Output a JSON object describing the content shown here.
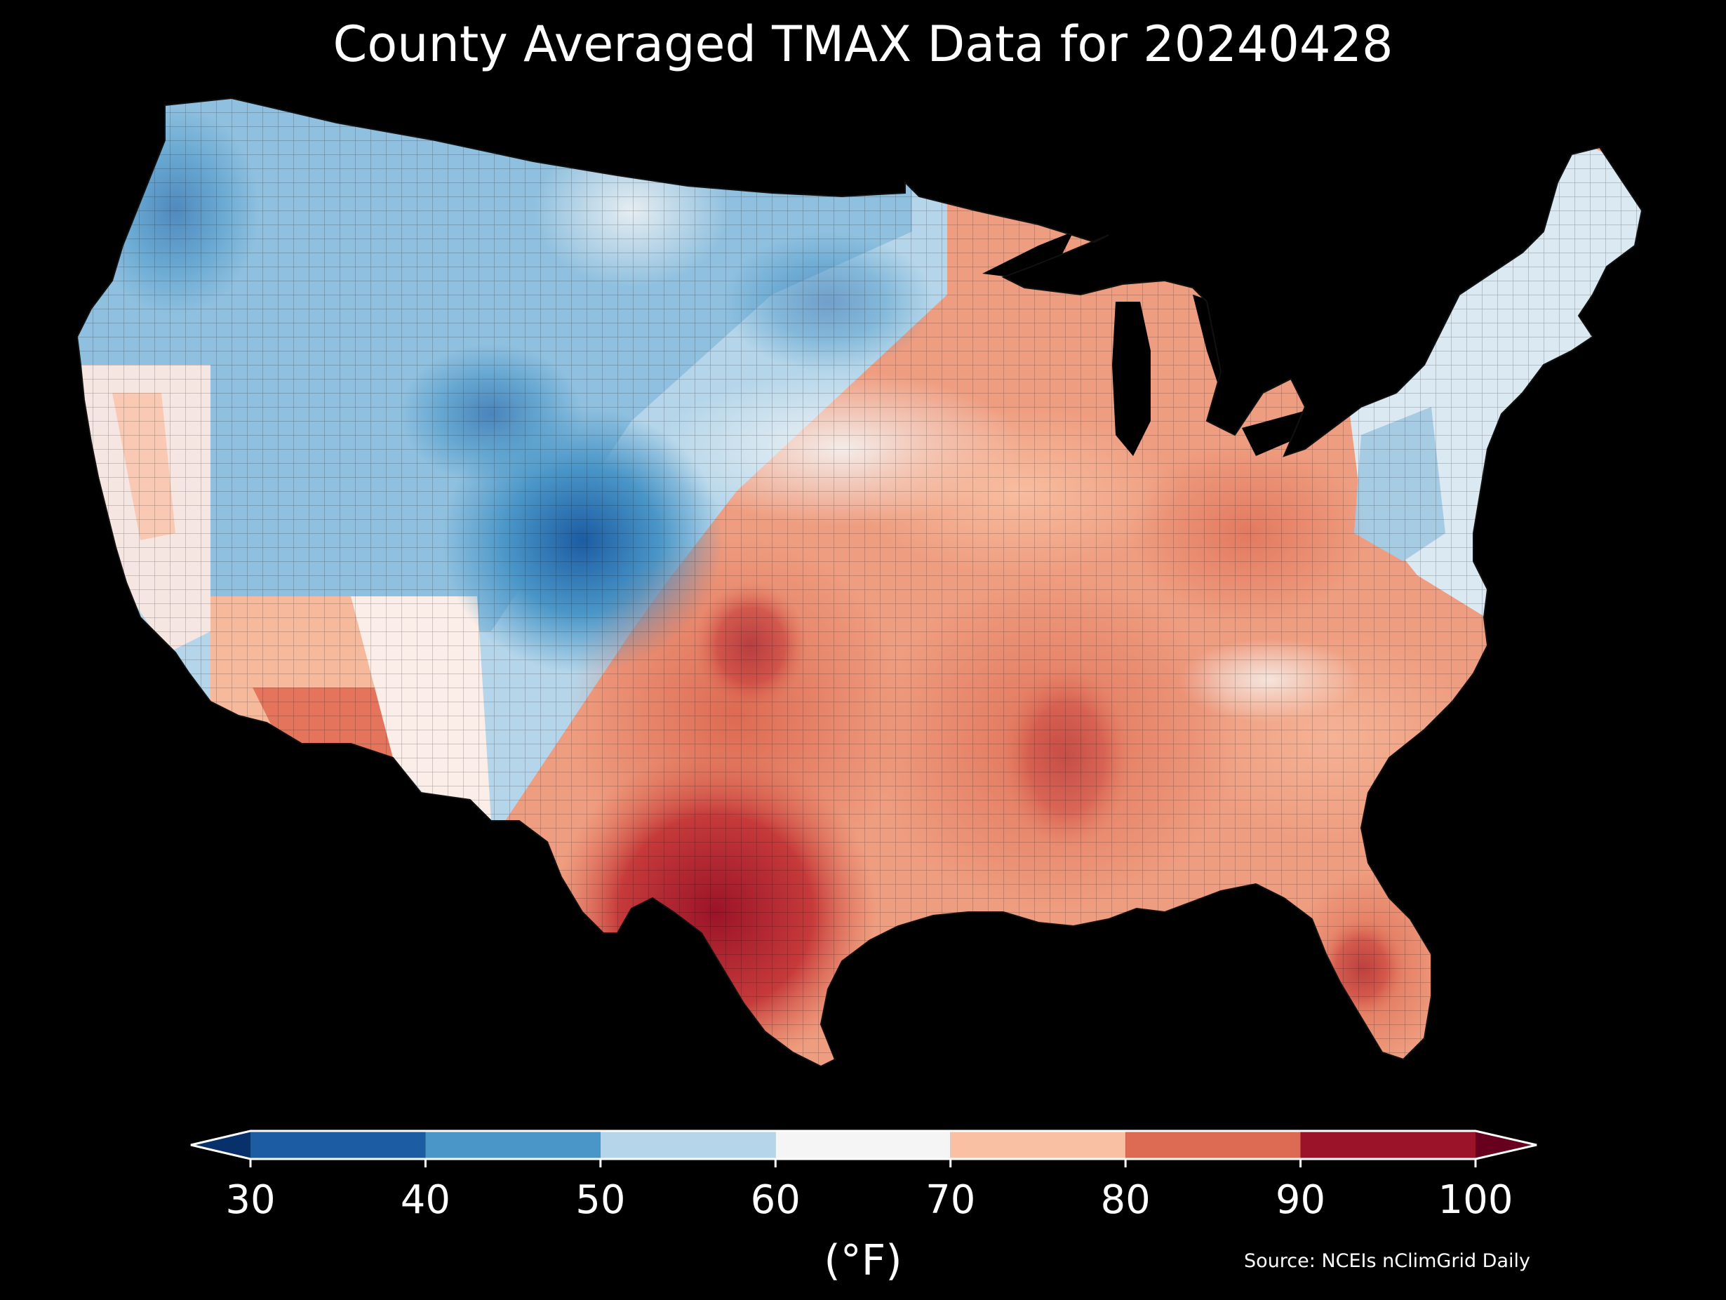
{
  "title": "County Averaged TMAX Data for 20240428",
  "source": "Source: NCEIs nClimGrid Daily",
  "colorbar": {
    "units": "(°F)",
    "ticks": [
      "30",
      "40",
      "50",
      "60",
      "70",
      "80",
      "90",
      "100"
    ],
    "bins": [
      {
        "from": 30,
        "to": 40,
        "color": "#1c5ca3"
      },
      {
        "from": 40,
        "to": 50,
        "color": "#4a96c8"
      },
      {
        "from": 50,
        "to": 60,
        "color": "#b5d6ea"
      },
      {
        "from": 60,
        "to": 70,
        "color": "#f5f5f5"
      },
      {
        "from": 70,
        "to": 80,
        "color": "#f9c0a3"
      },
      {
        "from": 80,
        "to": 90,
        "color": "#dd6a52"
      },
      {
        "from": 90,
        "to": 100,
        "color": "#9b1328"
      }
    ],
    "under_color": "#08306b",
    "over_color": "#67001f"
  },
  "map": {
    "region": "Contiguous United States",
    "background": "#000000",
    "border_color": "#222222"
  }
}
